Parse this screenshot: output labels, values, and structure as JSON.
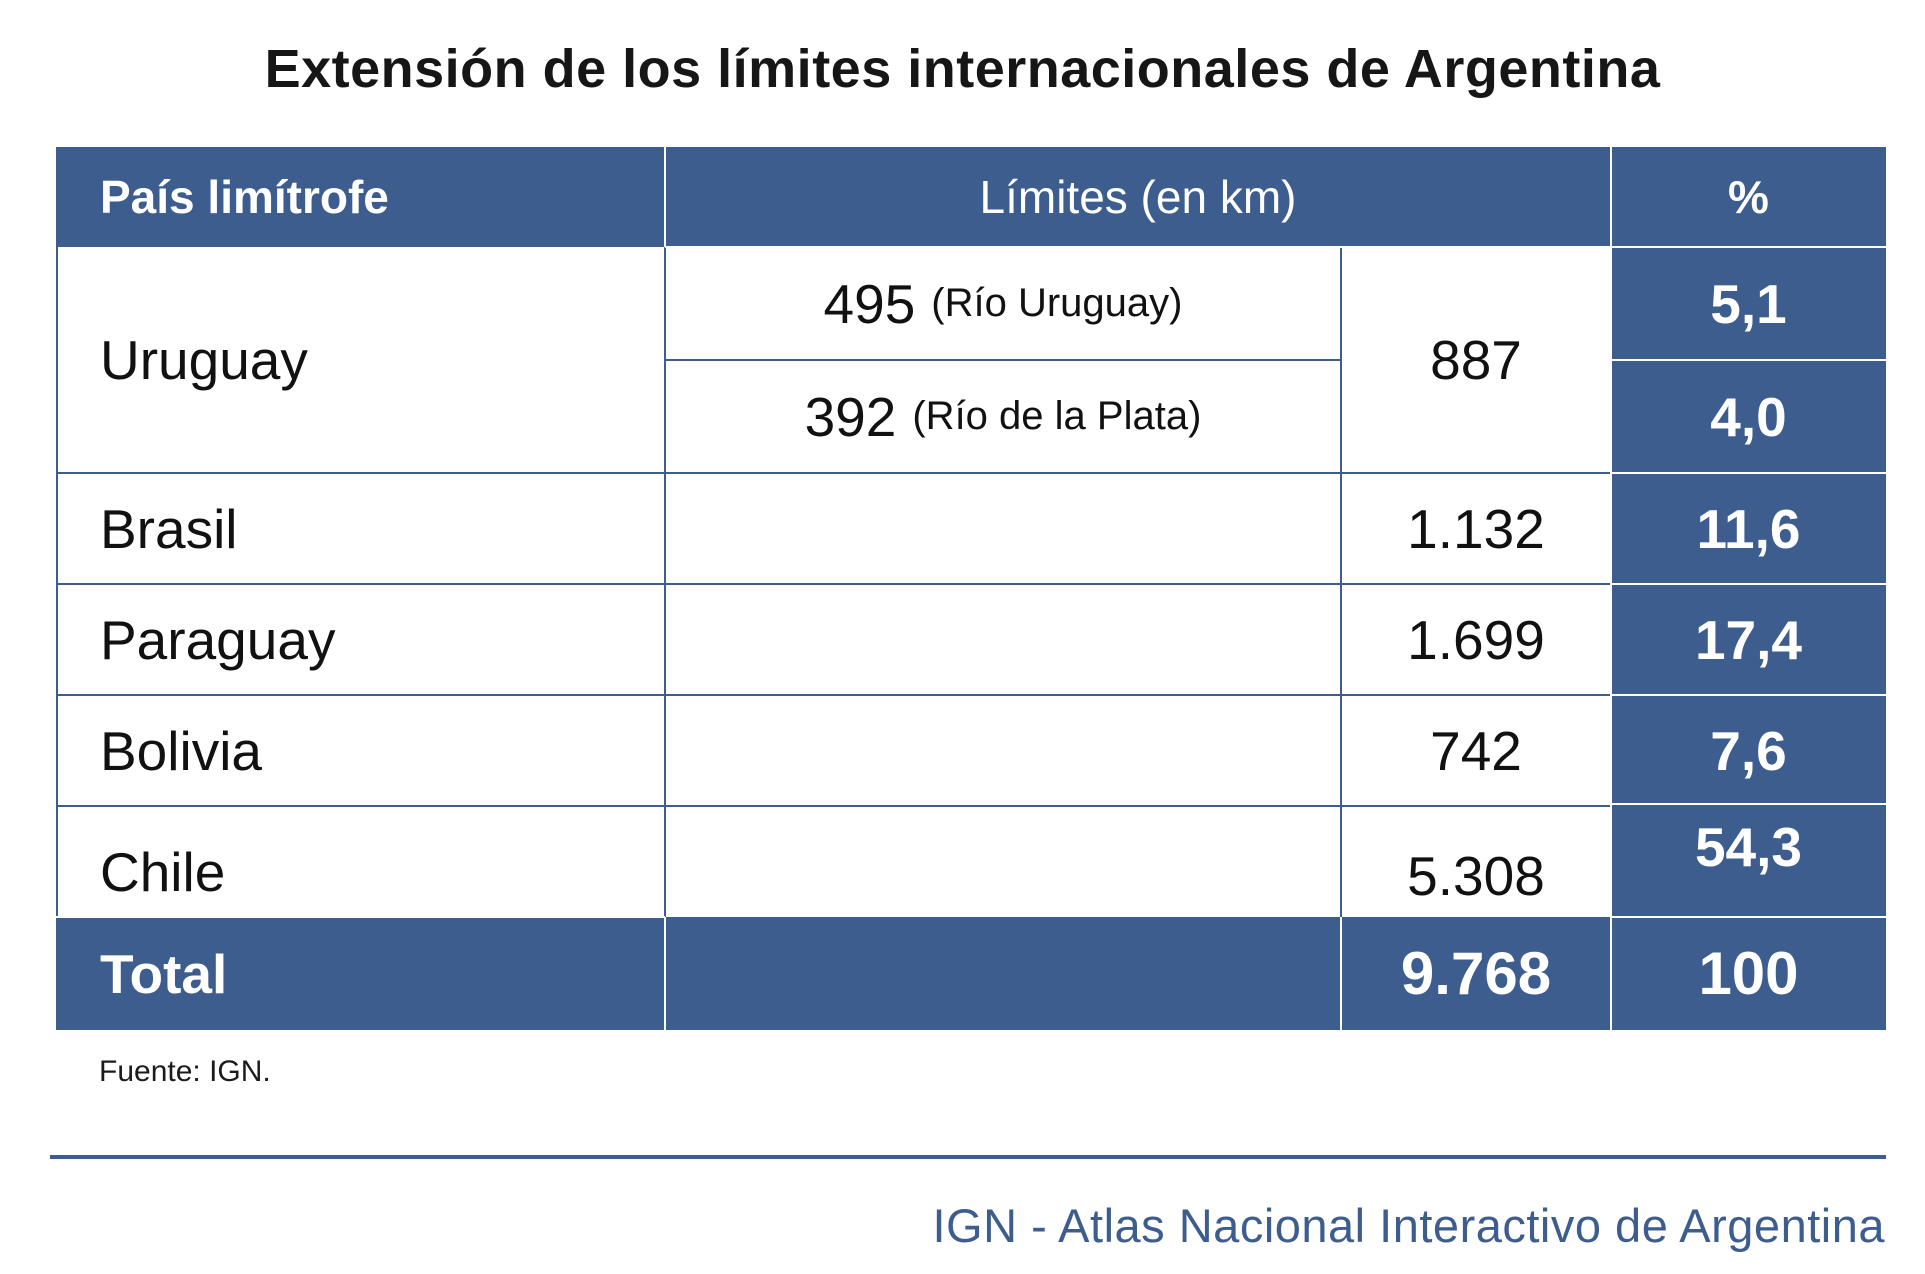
{
  "title": "Extensión de los límites internacionales de Argentina",
  "colors": {
    "header_blue": "#3d5d8f",
    "text_dark": "#111111",
    "background": "#ffffff"
  },
  "table": {
    "headers": {
      "country": "País limítrofe",
      "limits": "Límites (en km)",
      "percent": "%"
    },
    "uruguay": {
      "country": "Uruguay",
      "sub1_value": "495",
      "sub1_label": "(Río Uruguay)",
      "sub2_value": "392",
      "sub2_label": "(Río de la Plata)",
      "total_km": "887",
      "pct1": "5,1",
      "pct2": "4,0"
    },
    "rows": [
      {
        "country": "Brasil",
        "km": "1.132",
        "pct": "11,6"
      },
      {
        "country": "Paraguay",
        "km": "1.699",
        "pct": "17,4"
      },
      {
        "country": "Bolivia",
        "km": "742",
        "pct": "7,6"
      },
      {
        "country": "Chile",
        "km": "5.308",
        "pct": "54,3"
      }
    ],
    "total": {
      "label": "Total",
      "km": "9.768",
      "pct": "100"
    }
  },
  "footnote": "Fuente: IGN.",
  "credit": "IGN - Atlas Nacional Interactivo de Argentina"
}
